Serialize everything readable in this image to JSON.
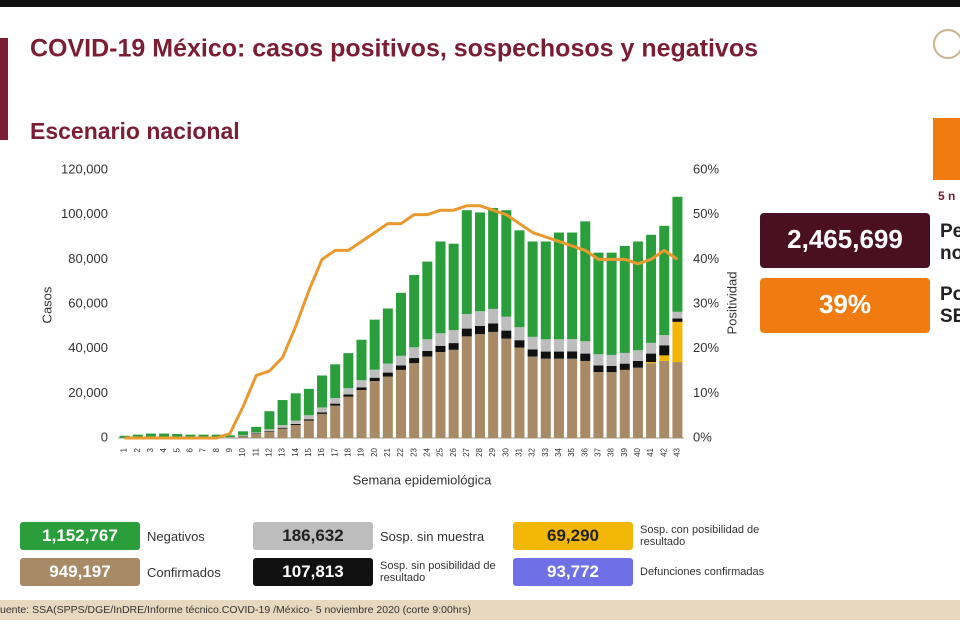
{
  "chart_data": {
    "type": "bar",
    "title": "COVID-19 México: casos positivos, sospechosos y negativos",
    "subtitle": "Escenario nacional",
    "xlabel": "Semana epidemiológica",
    "ylabel": "Casos",
    "y2label": "Positividad",
    "categories": [
      "1",
      "2",
      "3",
      "4",
      "5",
      "6",
      "7",
      "8",
      "9",
      "10",
      "11",
      "12",
      "13",
      "14",
      "15",
      "16",
      "17",
      "18",
      "19",
      "20",
      "21",
      "22",
      "23",
      "24",
      "25",
      "26",
      "27",
      "28",
      "29",
      "30",
      "31",
      "32",
      "33",
      "34",
      "35",
      "36",
      "37",
      "38",
      "39",
      "40",
      "41",
      "42",
      "43"
    ],
    "ylim": [
      0,
      120000
    ],
    "yticks": [
      0,
      {
        "value": 20000,
        "label": "20,000"
      },
      {
        "value": 40000,
        "label": "40,000"
      },
      {
        "value": 60000,
        "label": "60,000"
      },
      {
        "value": 80000,
        "label": "80,000"
      },
      {
        "value": 100000,
        "label": "100,000"
      },
      {
        "value": 120000,
        "label": "120,000"
      }
    ],
    "y2lim": [
      0,
      60
    ],
    "y2ticks": [
      {
        "value": 0,
        "label": "0%"
      },
      {
        "value": 10,
        "label": "10%"
      },
      {
        "value": 20,
        "label": "20%"
      },
      {
        "value": 30,
        "label": "30%"
      },
      {
        "value": 40,
        "label": "40%"
      },
      {
        "value": 50,
        "label": "50%"
      },
      {
        "value": 60,
        "label": "60%"
      }
    ],
    "series": [
      {
        "name": "Confirmados",
        "total": "949,197",
        "color": "#a88b66",
        "values": [
          0,
          0,
          0,
          0,
          0,
          0,
          0,
          0,
          200,
          800,
          1800,
          2800,
          4200,
          5800,
          7800,
          10800,
          14500,
          18500,
          21500,
          25500,
          27500,
          30500,
          33500,
          36500,
          38500,
          39500,
          45500,
          46500,
          47500,
          44500,
          40500,
          36500,
          35500,
          35500,
          35500,
          34500,
          29500,
          29500,
          30500,
          31500,
          33500,
          34500,
          34000
        ]
      },
      {
        "name": "Sosp. con posibilidad de resultado",
        "total": "69,290",
        "color": "#f2b705",
        "values": [
          0,
          0,
          0,
          0,
          0,
          0,
          0,
          0,
          0,
          0,
          0,
          0,
          0,
          0,
          0,
          0,
          0,
          0,
          0,
          0,
          0,
          0,
          0,
          0,
          0,
          0,
          0,
          0,
          0,
          0,
          0,
          0,
          0,
          0,
          0,
          0,
          0,
          0,
          0,
          0,
          500,
          2500,
          18000
        ]
      },
      {
        "name": "Sosp. sin posibilidad de resultado",
        "total": "107,813",
        "color": "#111111",
        "values": [
          0,
          0,
          0,
          0,
          0,
          0,
          0,
          0,
          0,
          100,
          200,
          300,
          400,
          500,
          600,
          700,
          900,
          1000,
          1200,
          1500,
          1800,
          2000,
          2300,
          2500,
          2800,
          3000,
          3500,
          3700,
          3800,
          3600,
          3300,
          3200,
          3200,
          3200,
          3300,
          3300,
          3000,
          2800,
          2800,
          3000,
          3800,
          4500,
          1500
        ]
      },
      {
        "name": "Sosp. sin muestra",
        "total": "186,632",
        "color": "#bdbdbd",
        "values": [
          100,
          200,
          300,
          300,
          300,
          200,
          200,
          200,
          200,
          300,
          500,
          800,
          1200,
          1500,
          1800,
          2200,
          2500,
          2800,
          3200,
          3600,
          4000,
          4300,
          4800,
          5200,
          5600,
          5800,
          6500,
          6600,
          6500,
          6200,
          5800,
          5600,
          5500,
          5500,
          5500,
          5500,
          5000,
          4900,
          4800,
          4800,
          4800,
          4600,
          3000
        ]
      },
      {
        "name": "Negativos",
        "total": "1,152,767",
        "color": "#2b9e3c",
        "values": [
          900,
          1300,
          1700,
          1700,
          1500,
          1300,
          1300,
          1300,
          800,
          1800,
          2500,
          8100,
          11200,
          12200,
          11800,
          14300,
          15100,
          15700,
          18100,
          22400,
          24700,
          28200,
          32400,
          34800,
          41100,
          38700,
          46500,
          44200,
          45200,
          47700,
          43400,
          42700,
          43800,
          47800,
          47700,
          53700,
          45500,
          45800,
          47900,
          48700,
          48400,
          48900,
          51500
        ]
      },
      {
        "type": "line",
        "axis": "y2",
        "color": "#e9992e",
        "values": [
          0,
          0,
          0,
          0,
          0,
          0,
          0,
          0,
          1,
          7,
          14,
          15,
          18,
          25,
          33,
          40,
          42,
          42,
          44,
          46,
          48,
          48,
          50,
          50,
          51,
          51,
          52,
          52,
          51,
          50,
          48,
          46,
          45,
          44,
          43,
          42,
          40,
          40,
          40,
          39,
          40,
          42,
          40
        ]
      }
    ],
    "deaths": {
      "name": "Defunciones confirmadas",
      "total": "93,772",
      "color": "#6f6fe6"
    },
    "panel": {
      "date": "5 n",
      "people_total": "2,465,699",
      "people_label": [
        "Pe",
        "no"
      ],
      "positivity": "39%",
      "positivity_label": [
        "Po",
        "SE"
      ]
    },
    "source": "uente: SSA(SPPS/DGE/InDRE/Informe técnico.COVID-19 /México- 5 noviembre 2020 (corte 9:00hrs)"
  }
}
